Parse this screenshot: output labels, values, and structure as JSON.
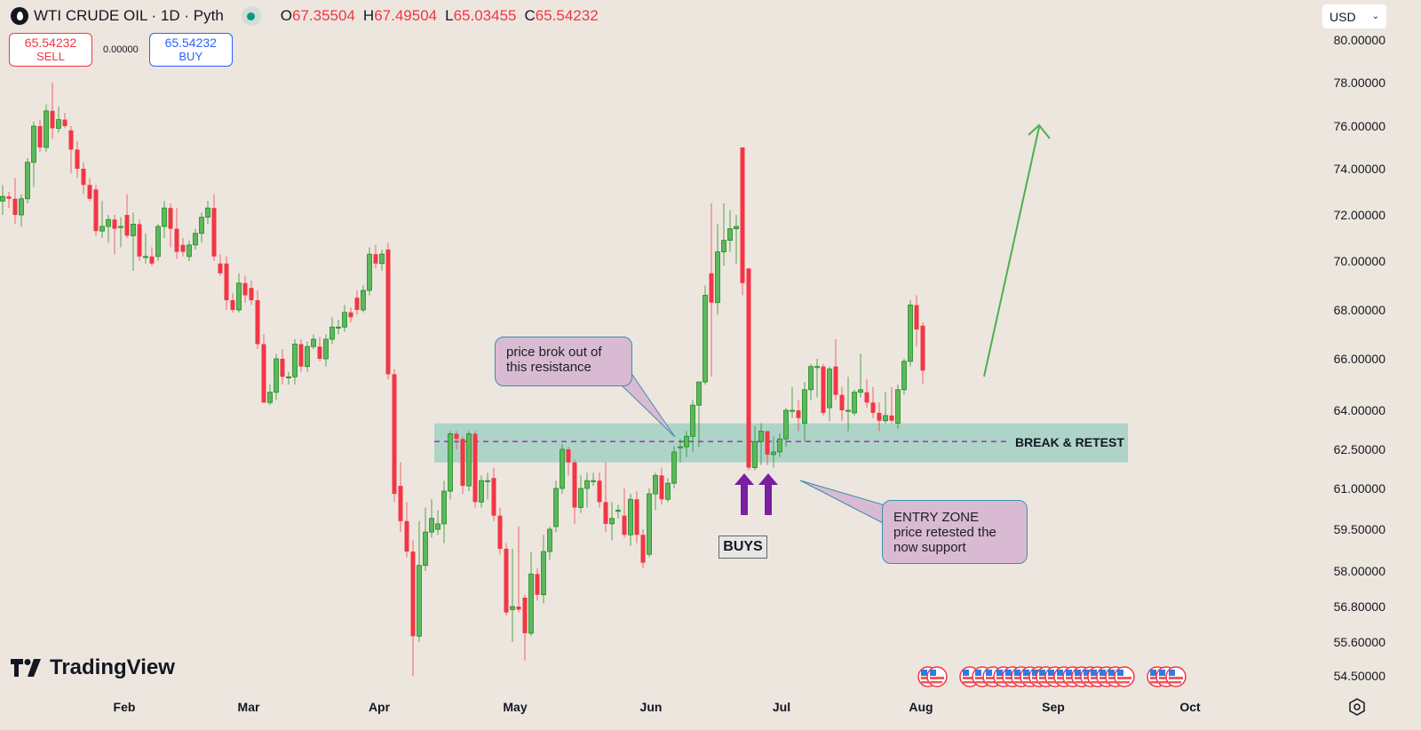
{
  "header": {
    "symbol_title": "WTI CRUDE OIL · 1D · Pyth",
    "ohlc": {
      "o_label": "O",
      "o": "67.35504",
      "h_label": "H",
      "h": "67.49504",
      "l_label": "L",
      "l": "65.03455",
      "c_label": "C",
      "c": "65.54232"
    },
    "sell_price": "65.54232",
    "sell_label": "SELL",
    "spread": "0.00000",
    "buy_price": "65.54232",
    "buy_label": "BUY",
    "currency": "USD"
  },
  "annotations": {
    "callout_breakout": [
      "price brok out of",
      "this resistance"
    ],
    "callout_entry": [
      "ENTRY ZONE",
      "price retested the",
      "now support"
    ],
    "zone_label": "BREAK & RETEST",
    "buys_label": "BUYS"
  },
  "branding": {
    "logo_text": "TradingView"
  },
  "colors": {
    "up": "#5cb85c",
    "up_border": "#1f8b24",
    "down": "#f23645",
    "zone": "#a6d2c4",
    "level": "#a020c0",
    "callout_bg": "#d9bad3",
    "callout_border": "#3a8fb0",
    "arrow": "#7b1fa2",
    "trend_arrow": "#4caf50",
    "bg": "#ede6de"
  },
  "chart_data": {
    "type": "candlestick",
    "title": "WTI CRUDE OIL · 1D · Pyth",
    "y_scale": "log",
    "ylim": [
      54.5,
      80
    ],
    "y_ticks": [
      {
        "value": 80,
        "label": "80.00000"
      },
      {
        "value": 78,
        "label": "78.00000"
      },
      {
        "value": 76,
        "label": "76.00000"
      },
      {
        "value": 74,
        "label": "74.00000"
      },
      {
        "value": 72,
        "label": "72.00000"
      },
      {
        "value": 70,
        "label": "70.00000"
      },
      {
        "value": 68,
        "label": "68.00000"
      },
      {
        "value": 66,
        "label": "66.00000"
      },
      {
        "value": 64,
        "label": "64.00000"
      },
      {
        "value": 62.5,
        "label": "62.50000"
      },
      {
        "value": 61,
        "label": "61.00000"
      },
      {
        "value": 59.5,
        "label": "59.50000"
      },
      {
        "value": 58,
        "label": "58.00000"
      },
      {
        "value": 56.8,
        "label": "56.80000"
      },
      {
        "value": 55.6,
        "label": "55.60000"
      },
      {
        "value": 54.5,
        "label": "54.50000"
      }
    ],
    "x_ticks": [
      "Feb",
      "Mar",
      "Apr",
      "May",
      "Jun",
      "Jul",
      "Aug",
      "Sep",
      "Oct"
    ],
    "zone": {
      "low": 62.0,
      "high": 63.5,
      "level": 62.8,
      "label": "BREAK & RETEST"
    },
    "ohlc": [
      [
        72.6,
        73.3,
        72.0,
        72.8
      ],
      [
        72.8,
        73.0,
        72.3,
        72.7
      ],
      [
        72.7,
        73.6,
        71.6,
        72.0
      ],
      [
        72.0,
        72.9,
        71.5,
        72.7
      ],
      [
        72.7,
        74.5,
        72.5,
        74.3
      ],
      [
        74.3,
        76.2,
        73.2,
        76.0
      ],
      [
        76.0,
        76.3,
        74.8,
        75.0
      ],
      [
        75.0,
        77.0,
        74.8,
        76.7
      ],
      [
        76.7,
        78.0,
        75.4,
        75.9
      ],
      [
        75.9,
        76.9,
        75.7,
        76.3
      ],
      [
        76.3,
        76.6,
        75.9,
        76.0
      ],
      [
        75.8,
        76.0,
        73.8,
        74.9
      ],
      [
        74.9,
        75.3,
        73.6,
        74.0
      ],
      [
        74.0,
        74.3,
        72.9,
        73.3
      ],
      [
        73.3,
        73.6,
        72.6,
        72.7
      ],
      [
        73.1,
        73.3,
        71.1,
        71.3
      ],
      [
        71.3,
        72.6,
        71.0,
        71.5
      ],
      [
        71.5,
        72.0,
        70.8,
        71.8
      ],
      [
        71.8,
        72.0,
        70.3,
        71.4
      ],
      [
        71.5,
        71.9,
        70.6,
        71.5
      ],
      [
        72.0,
        72.9,
        71.0,
        71.1
      ],
      [
        71.1,
        72.1,
        69.6,
        71.6
      ],
      [
        71.6,
        71.8,
        70.0,
        70.2
      ],
      [
        70.2,
        71.2,
        69.9,
        70.2
      ],
      [
        70.2,
        70.6,
        69.8,
        69.9
      ],
      [
        70.2,
        71.6,
        70.0,
        71.5
      ],
      [
        71.5,
        72.6,
        71.0,
        72.3
      ],
      [
        72.3,
        72.5,
        70.6,
        71.4
      ],
      [
        71.4,
        72.3,
        70.1,
        70.4
      ],
      [
        70.7,
        71.0,
        70.2,
        70.4
      ],
      [
        70.2,
        70.9,
        70.0,
        70.7
      ],
      [
        70.7,
        71.4,
        70.5,
        71.2
      ],
      [
        71.2,
        72.1,
        70.8,
        71.9
      ],
      [
        71.9,
        72.6,
        71.6,
        72.3
      ],
      [
        72.3,
        72.9,
        70.0,
        70.2
      ],
      [
        69.9,
        70.3,
        69.4,
        69.5
      ],
      [
        69.9,
        70.2,
        68.0,
        68.4
      ],
      [
        68.4,
        68.7,
        67.9,
        68.0
      ],
      [
        68.0,
        69.5,
        67.9,
        69.1
      ],
      [
        69.1,
        69.4,
        68.3,
        68.6
      ],
      [
        68.9,
        69.2,
        68.2,
        68.4
      ],
      [
        68.4,
        68.8,
        66.4,
        66.6
      ],
      [
        66.6,
        67.0,
        64.3,
        64.3
      ],
      [
        64.3,
        65.0,
        64.2,
        64.7
      ],
      [
        64.7,
        66.2,
        64.4,
        66.0
      ],
      [
        66.0,
        66.4,
        65.0,
        65.3
      ],
      [
        65.3,
        65.5,
        65.0,
        65.3
      ],
      [
        65.3,
        66.8,
        65.0,
        66.6
      ],
      [
        66.6,
        66.8,
        65.5,
        65.7
      ],
      [
        65.7,
        66.7,
        65.5,
        66.5
      ],
      [
        66.5,
        67.0,
        66.4,
        66.8
      ],
      [
        66.5,
        66.9,
        65.9,
        66.0
      ],
      [
        66.0,
        67.0,
        65.7,
        66.8
      ],
      [
        66.8,
        67.7,
        66.6,
        67.3
      ],
      [
        67.3,
        67.6,
        67.0,
        67.3
      ],
      [
        67.3,
        68.2,
        67.1,
        67.9
      ],
      [
        67.9,
        68.1,
        67.5,
        67.7
      ],
      [
        68.5,
        68.8,
        67.8,
        68.0
      ],
      [
        68.0,
        69.0,
        67.9,
        68.8
      ],
      [
        68.8,
        70.6,
        68.6,
        70.3
      ],
      [
        70.3,
        70.7,
        69.7,
        69.9
      ],
      [
        69.9,
        70.5,
        69.6,
        70.3
      ],
      [
        70.5,
        70.8,
        65.2,
        65.4
      ],
      [
        65.4,
        65.6,
        60.5,
        60.8
      ],
      [
        61.1,
        62.0,
        59.4,
        59.8
      ],
      [
        59.8,
        60.5,
        58.5,
        58.7
      ],
      [
        58.7,
        59.1,
        54.3,
        55.8
      ],
      [
        55.8,
        59.8,
        55.6,
        58.2
      ],
      [
        58.2,
        60.3,
        58.0,
        59.4
      ],
      [
        59.4,
        60.6,
        59.2,
        59.9
      ],
      [
        59.5,
        60.2,
        59.3,
        59.7
      ],
      [
        59.7,
        61.3,
        59.0,
        60.9
      ],
      [
        60.9,
        63.2,
        60.6,
        63.1
      ],
      [
        63.1,
        63.2,
        62.5,
        62.9
      ],
      [
        62.9,
        63.0,
        60.8,
        61.1
      ],
      [
        61.1,
        63.2,
        60.9,
        63.1
      ],
      [
        63.1,
        63.2,
        60.3,
        60.5
      ],
      [
        60.5,
        61.5,
        60.3,
        61.3
      ],
      [
        61.3,
        61.6,
        60.6,
        61.3
      ],
      [
        61.4,
        61.8,
        59.8,
        60.0
      ],
      [
        60.0,
        60.3,
        58.6,
        58.8
      ],
      [
        58.8,
        59.0,
        56.5,
        56.6
      ],
      [
        56.7,
        58.8,
        55.6,
        56.8
      ],
      [
        56.8,
        59.6,
        56.6,
        56.7
      ],
      [
        57.1,
        57.2,
        55.0,
        55.9
      ],
      [
        55.9,
        58.7,
        55.8,
        57.9
      ],
      [
        57.9,
        58.1,
        57.0,
        57.2
      ],
      [
        57.2,
        59.3,
        56.9,
        58.7
      ],
      [
        58.7,
        59.6,
        58.4,
        59.5
      ],
      [
        59.6,
        61.3,
        59.4,
        61.0
      ],
      [
        61.0,
        62.7,
        60.8,
        62.5
      ],
      [
        62.5,
        62.6,
        61.5,
        62.0
      ],
      [
        62.0,
        62.1,
        59.7,
        60.3
      ],
      [
        60.3,
        61.5,
        60.1,
        61.0
      ],
      [
        61.0,
        61.6,
        60.3,
        61.3
      ],
      [
        61.3,
        61.6,
        61.1,
        61.3
      ],
      [
        61.3,
        61.6,
        60.3,
        60.5
      ],
      [
        60.5,
        62.0,
        59.4,
        59.7
      ],
      [
        59.7,
        60.5,
        59.1,
        59.9
      ],
      [
        60.2,
        60.4,
        59.9,
        60.2
      ],
      [
        60.0,
        61.0,
        59.2,
        59.3
      ],
      [
        59.3,
        60.8,
        58.9,
        60.6
      ],
      [
        60.6,
        60.9,
        59.0,
        59.3
      ],
      [
        59.3,
        59.5,
        58.1,
        58.3
      ],
      [
        58.6,
        61.0,
        58.5,
        60.8
      ],
      [
        60.8,
        61.6,
        60.2,
        61.5
      ],
      [
        61.5,
        61.8,
        60.4,
        60.6
      ],
      [
        60.6,
        61.4,
        60.5,
        61.2
      ],
      [
        61.2,
        62.6,
        61.0,
        62.4
      ],
      [
        62.6,
        62.9,
        62.0,
        62.6
      ],
      [
        62.6,
        63.2,
        62.2,
        63.0
      ],
      [
        63.0,
        64.4,
        62.4,
        64.2
      ],
      [
        64.2,
        65.1,
        62.6,
        65.1
      ],
      [
        65.1,
        69.0,
        65.0,
        68.6
      ],
      [
        69.5,
        72.5,
        65.3,
        68.3
      ],
      [
        68.3,
        71.6,
        67.8,
        70.4
      ],
      [
        70.4,
        72.5,
        69.8,
        70.9
      ],
      [
        70.9,
        72.2,
        70.4,
        71.4
      ],
      [
        71.4,
        72.0,
        69.9,
        71.5
      ],
      [
        75.0,
        75.0,
        68.6,
        69.1
      ],
      [
        69.7,
        69.7,
        61.7,
        61.8
      ],
      [
        61.8,
        63.4,
        61.7,
        62.8
      ],
      [
        62.8,
        63.5,
        61.9,
        63.2
      ],
      [
        63.2,
        63.2,
        61.9,
        62.3
      ],
      [
        62.3,
        63.0,
        61.8,
        62.4
      ],
      [
        62.4,
        63.1,
        62.2,
        62.9
      ],
      [
        62.9,
        64.1,
        62.6,
        64.0
      ],
      [
        64.0,
        64.9,
        63.7,
        64.0
      ],
      [
        64.0,
        64.4,
        63.2,
        63.7
      ],
      [
        63.5,
        65.1,
        62.8,
        64.8
      ],
      [
        64.8,
        65.8,
        64.4,
        65.7
      ],
      [
        65.7,
        66.0,
        64.5,
        65.7
      ],
      [
        65.7,
        65.8,
        63.8,
        63.9
      ],
      [
        64.1,
        65.7,
        63.6,
        65.6
      ],
      [
        65.7,
        66.8,
        64.4,
        64.6
      ],
      [
        64.6,
        64.9,
        63.6,
        64.0
      ],
      [
        64.0,
        65.3,
        63.2,
        64.0
      ],
      [
        63.9,
        64.8,
        63.8,
        64.7
      ],
      [
        64.7,
        66.2,
        64.5,
        64.8
      ],
      [
        64.7,
        65.2,
        64.1,
        64.3
      ],
      [
        64.3,
        64.9,
        63.7,
        63.9
      ],
      [
        63.9,
        64.3,
        63.2,
        63.6
      ],
      [
        63.6,
        64.7,
        63.5,
        63.8
      ],
      [
        63.8,
        64.9,
        63.5,
        63.6
      ],
      [
        63.5,
        65.0,
        63.3,
        64.8
      ],
      [
        64.8,
        66.0,
        64.6,
        65.9
      ],
      [
        65.9,
        68.4,
        65.7,
        68.2
      ],
      [
        68.2,
        68.6,
        66.5,
        67.2
      ],
      [
        67.35504,
        67.49504,
        65.03455,
        65.54232
      ]
    ]
  }
}
